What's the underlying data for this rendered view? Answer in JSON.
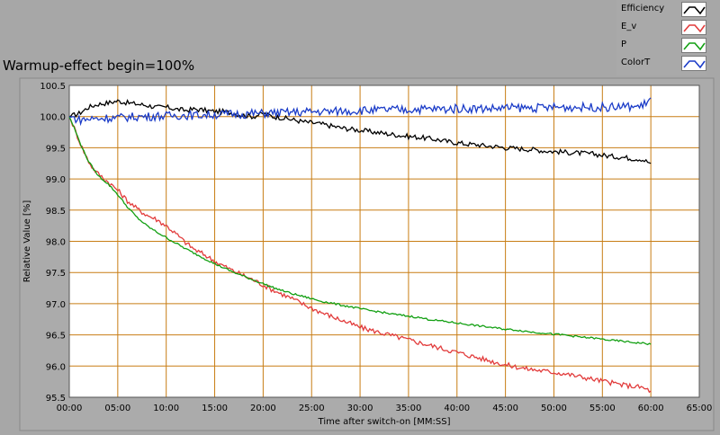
{
  "chart_title": "Warmup-effect begin=100%",
  "legend": [
    {
      "label": "Efficiency",
      "color": "#000000"
    },
    {
      "label": "E_v",
      "color": "#e23c3c"
    },
    {
      "label": "P",
      "color": "#13a013"
    },
    {
      "label": "ColorT",
      "color": "#1b3cc8"
    }
  ],
  "chart_data": {
    "type": "line",
    "title": "Warmup-effect begin=100%",
    "xlabel": "Time after switch-on [MM:SS]",
    "ylabel": "Relative Value [%]",
    "xlim": [
      0,
      65
    ],
    "ylim": [
      95.5,
      100.5
    ],
    "x_ticks": [
      "00:00",
      "05:00",
      "10:00",
      "15:00",
      "20:00",
      "25:00",
      "30:00",
      "35:00",
      "40:00",
      "45:00",
      "50:00",
      "55:00",
      "60:00",
      "65:00"
    ],
    "y_ticks": [
      "95.5",
      "96.0",
      "96.5",
      "97.0",
      "97.5",
      "98.0",
      "98.5",
      "99.0",
      "99.5",
      "100.0",
      "100.5"
    ],
    "grid": true,
    "legend_position": "top-right",
    "series": [
      {
        "name": "Efficiency",
        "color": "#000000",
        "x": [
          0,
          1,
          2,
          3,
          4,
          5,
          6,
          7,
          8,
          9,
          10,
          11,
          12,
          13,
          14,
          15,
          16,
          17,
          18,
          19,
          20,
          21,
          22,
          23,
          24,
          25,
          26,
          27,
          28,
          29,
          30,
          31,
          32,
          33,
          34,
          35,
          36,
          37,
          38,
          39,
          40,
          41,
          42,
          43,
          44,
          45,
          46,
          47,
          48,
          49,
          50,
          51,
          52,
          53,
          54,
          55,
          56,
          57,
          58,
          59,
          60
        ],
        "y": [
          100.0,
          100.05,
          100.15,
          100.2,
          100.22,
          100.25,
          100.22,
          100.2,
          100.18,
          100.15,
          100.15,
          100.12,
          100.1,
          100.12,
          100.1,
          100.08,
          100.08,
          100.05,
          100.02,
          100.0,
          100.05,
          100.0,
          99.98,
          99.95,
          99.92,
          99.9,
          99.88,
          99.85,
          99.82,
          99.8,
          99.78,
          99.76,
          99.74,
          99.72,
          99.7,
          99.68,
          99.67,
          99.65,
          99.63,
          99.6,
          99.58,
          99.56,
          99.55,
          99.53,
          99.52,
          99.5,
          99.49,
          99.48,
          99.47,
          99.45,
          99.44,
          99.43,
          99.42,
          99.41,
          99.4,
          99.38,
          99.36,
          99.35,
          99.33,
          99.32,
          99.25
        ]
      },
      {
        "name": "E_v",
        "color": "#e23c3c",
        "x": [
          0,
          0.5,
          1,
          1.5,
          2,
          2.5,
          3,
          4,
          5,
          6,
          7,
          8,
          9,
          10,
          11,
          12,
          13,
          14,
          15,
          16,
          17,
          18,
          19,
          20,
          21,
          22,
          23,
          24,
          25,
          26,
          27,
          28,
          29,
          30,
          31,
          32,
          33,
          34,
          35,
          36,
          37,
          38,
          39,
          40,
          41,
          42,
          43,
          44,
          45,
          46,
          47,
          48,
          49,
          50,
          51,
          52,
          53,
          54,
          55,
          56,
          57,
          58,
          59,
          60
        ],
        "y": [
          100.0,
          99.82,
          99.62,
          99.44,
          99.28,
          99.16,
          99.08,
          98.95,
          98.82,
          98.65,
          98.52,
          98.42,
          98.35,
          98.25,
          98.12,
          97.98,
          97.86,
          97.78,
          97.68,
          97.6,
          97.52,
          97.45,
          97.38,
          97.3,
          97.22,
          97.15,
          97.08,
          97.0,
          96.93,
          96.86,
          96.8,
          96.74,
          96.68,
          96.62,
          96.58,
          96.54,
          96.5,
          96.46,
          96.42,
          96.38,
          96.34,
          96.3,
          96.26,
          96.22,
          96.18,
          96.14,
          96.1,
          96.06,
          96.02,
          95.99,
          95.96,
          95.94,
          95.92,
          95.9,
          95.88,
          95.85,
          95.82,
          95.79,
          95.76,
          95.73,
          95.7,
          95.68,
          95.66,
          95.6
        ]
      },
      {
        "name": "P",
        "color": "#13a013",
        "x": [
          0,
          0.5,
          1,
          1.5,
          2,
          2.5,
          3,
          4,
          5,
          6,
          7,
          8,
          9,
          10,
          11,
          12,
          13,
          14,
          15,
          16,
          17,
          18,
          19,
          20,
          21,
          22,
          23,
          24,
          25,
          26,
          27,
          28,
          29,
          30,
          31,
          32,
          33,
          34,
          35,
          36,
          37,
          38,
          39,
          40,
          41,
          42,
          43,
          44,
          45,
          46,
          47,
          48,
          49,
          50,
          51,
          52,
          53,
          54,
          55,
          56,
          57,
          58,
          59,
          60
        ],
        "y": [
          100.0,
          99.82,
          99.62,
          99.44,
          99.28,
          99.16,
          99.05,
          98.92,
          98.75,
          98.55,
          98.38,
          98.25,
          98.15,
          98.06,
          97.97,
          97.88,
          97.8,
          97.72,
          97.64,
          97.57,
          97.5,
          97.44,
          97.38,
          97.32,
          97.26,
          97.21,
          97.16,
          97.12,
          97.08,
          97.04,
          97.01,
          96.98,
          96.95,
          96.92,
          96.89,
          96.87,
          96.84,
          96.82,
          96.8,
          96.78,
          96.75,
          96.73,
          96.71,
          96.69,
          96.67,
          96.65,
          96.63,
          96.61,
          96.59,
          96.58,
          96.56,
          96.54,
          96.53,
          96.51,
          96.5,
          96.48,
          96.46,
          96.45,
          96.43,
          96.41,
          96.4,
          96.38,
          96.37,
          96.35
        ]
      },
      {
        "name": "ColorT",
        "color": "#1b3cc8",
        "x": [
          0,
          1,
          2,
          3,
          4,
          5,
          6,
          7,
          8,
          9,
          10,
          11,
          12,
          13,
          14,
          15,
          16,
          17,
          18,
          19,
          20,
          21,
          22,
          23,
          24,
          25,
          26,
          27,
          28,
          29,
          30,
          31,
          32,
          33,
          34,
          35,
          36,
          37,
          38,
          39,
          40,
          41,
          42,
          43,
          44,
          45,
          46,
          47,
          48,
          49,
          50,
          51,
          52,
          53,
          54,
          55,
          56,
          57,
          58,
          59,
          60
        ],
        "y": [
          100.0,
          99.95,
          99.96,
          99.97,
          99.98,
          99.98,
          99.99,
          100.0,
          100.0,
          100.01,
          100.01,
          100.02,
          100.02,
          100.02,
          100.03,
          100.03,
          100.04,
          100.04,
          100.04,
          100.05,
          100.05,
          100.06,
          100.06,
          100.07,
          100.07,
          100.08,
          100.08,
          100.08,
          100.09,
          100.09,
          100.1,
          100.1,
          100.1,
          100.11,
          100.11,
          100.11,
          100.12,
          100.12,
          100.12,
          100.12,
          100.13,
          100.13,
          100.13,
          100.13,
          100.13,
          100.14,
          100.14,
          100.14,
          100.14,
          100.14,
          100.15,
          100.15,
          100.15,
          100.15,
          100.15,
          100.15,
          100.15,
          100.16,
          100.16,
          100.16,
          100.3
        ]
      }
    ]
  }
}
